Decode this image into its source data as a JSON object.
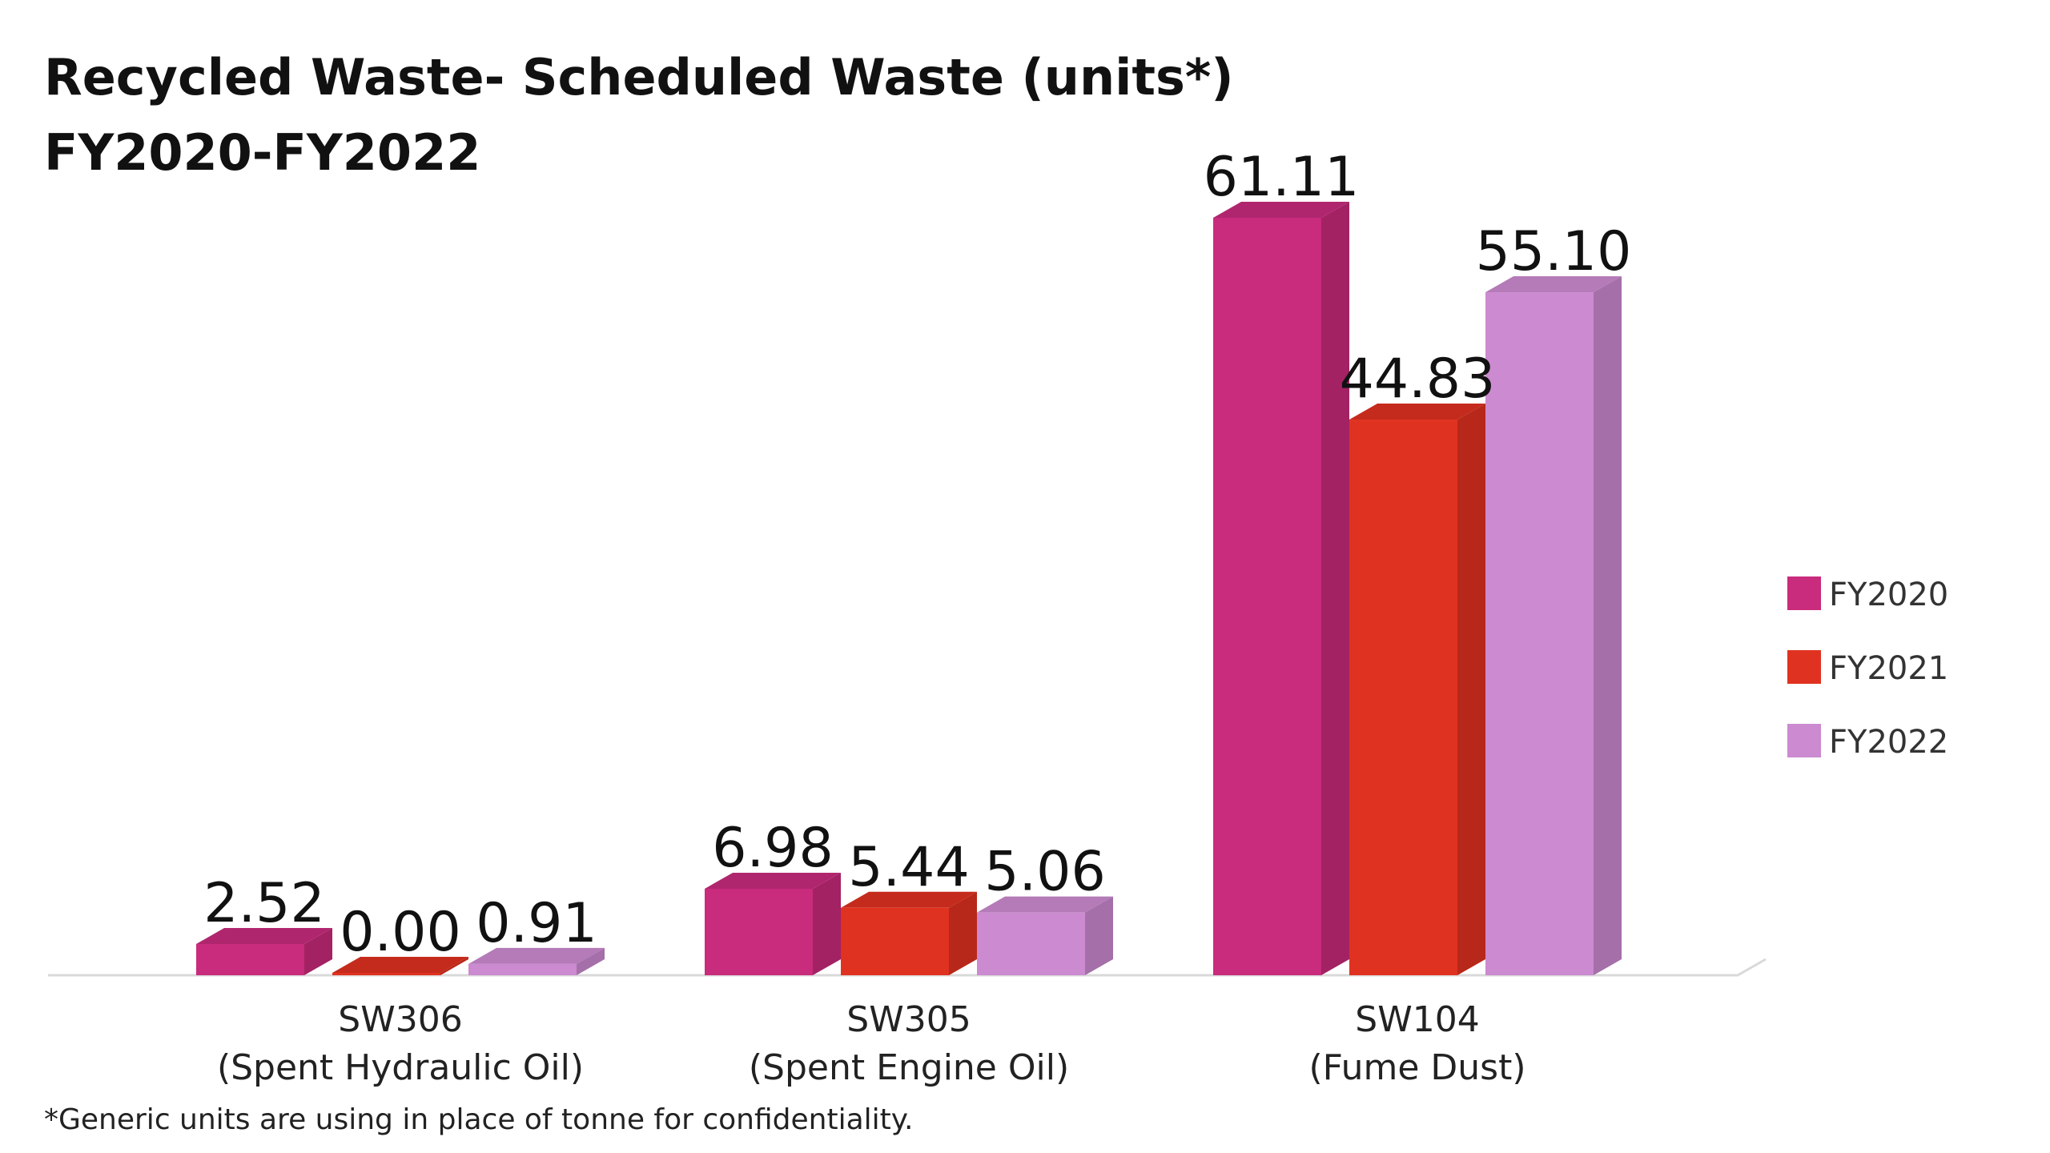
{
  "chart_data": {
    "type": "bar",
    "title": "Recycled Waste- Scheduled Waste (units*)",
    "subtitle": "FY2020-FY2022",
    "categories": [
      [
        "SW306",
        "(Spent Hydraulic Oil)"
      ],
      [
        "SW305",
        "(Spent Engine Oil)"
      ],
      [
        "SW104",
        "(Fume Dust)"
      ]
    ],
    "series": [
      {
        "name": "FY2020",
        "values": [
          2.52,
          6.98,
          61.11
        ],
        "labels": [
          "2.52",
          "6.98",
          "61.11"
        ],
        "color": "#C92B7D",
        "side": "#A32263",
        "top": "#B0266E"
      },
      {
        "name": "FY2021",
        "values": [
          0.0,
          5.44,
          44.83
        ],
        "labels": [
          "0.00",
          "5.44",
          "44.83"
        ],
        "color": "#E03220",
        "side": "#B8281A",
        "top": "#C52B1C"
      },
      {
        "name": "FY2022",
        "values": [
          0.91,
          5.06,
          55.1
        ],
        "labels": [
          "0.91",
          "5.06",
          "55.10"
        ],
        "color": "#CC8AD0",
        "side": "#A56FA9",
        "top": "#B47BB8"
      }
    ],
    "ylim": [
      0,
      61.11
    ],
    "grid": false,
    "legend": "right",
    "footnote": "*Generic units are using in place of tonne for confidentiality."
  }
}
